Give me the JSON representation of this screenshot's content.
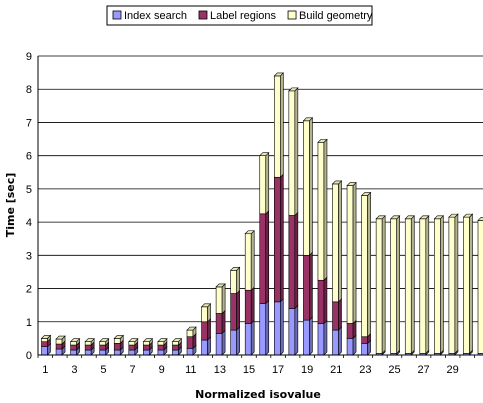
{
  "chart_data": {
    "type": "bar",
    "stacked": true,
    "title": "",
    "xlabel": "Normalized isovalue",
    "ylabel": "Time [sec]",
    "ylim": [
      0,
      9
    ],
    "yticks": [
      "0",
      "1",
      "2",
      "3",
      "4",
      "5",
      "6",
      "7",
      "8",
      "9"
    ],
    "grid": "horizontal",
    "legend_position": "top-center",
    "categories": [
      "1",
      "2",
      "3",
      "4",
      "5",
      "6",
      "7",
      "8",
      "9",
      "10",
      "11",
      "12",
      "13",
      "14",
      "15",
      "16",
      "17",
      "18",
      "19",
      "20",
      "21",
      "22",
      "23",
      "24",
      "25",
      "26",
      "27",
      "28",
      "29",
      "30",
      "31"
    ],
    "x_tick_labels": [
      "1",
      "",
      "3",
      "",
      "5",
      "",
      "7",
      "",
      "9",
      "",
      "11",
      "",
      "13",
      "",
      "15",
      "",
      "17",
      "",
      "19",
      "",
      "21",
      "",
      "23",
      "",
      "25",
      "",
      "27",
      "",
      "29",
      "",
      ""
    ],
    "series": [
      {
        "name": "Index search",
        "color": "#9999ff",
        "values": [
          0.25,
          0.18,
          0.15,
          0.15,
          0.15,
          0.15,
          0.15,
          0.15,
          0.15,
          0.15,
          0.2,
          0.45,
          0.65,
          0.75,
          0.95,
          1.55,
          1.6,
          1.4,
          1.05,
          0.95,
          0.75,
          0.5,
          0.35,
          0.05,
          0.05,
          0.05,
          0.05,
          0.05,
          0.05,
          0.05,
          0.05
        ]
      },
      {
        "name": "Label regions",
        "color": "#993366",
        "values": [
          0.15,
          0.15,
          0.15,
          0.15,
          0.15,
          0.2,
          0.15,
          0.15,
          0.15,
          0.15,
          0.35,
          0.55,
          0.6,
          1.1,
          1.0,
          2.7,
          3.75,
          2.8,
          1.95,
          1.3,
          0.85,
          0.45,
          0.2,
          0,
          0,
          0,
          0,
          0,
          0,
          0,
          0
        ]
      },
      {
        "name": "Build geometry",
        "color": "#ffffcc",
        "values": [
          0.1,
          0.15,
          0.1,
          0.1,
          0.1,
          0.15,
          0.1,
          0.1,
          0.1,
          0.1,
          0.2,
          0.45,
          0.8,
          0.7,
          1.7,
          1.75,
          3.05,
          3.75,
          4.05,
          4.15,
          3.55,
          4.15,
          4.25,
          4.05,
          4.05,
          4.05,
          4.05,
          4.05,
          4.1,
          4.1,
          4.0
        ]
      }
    ]
  }
}
